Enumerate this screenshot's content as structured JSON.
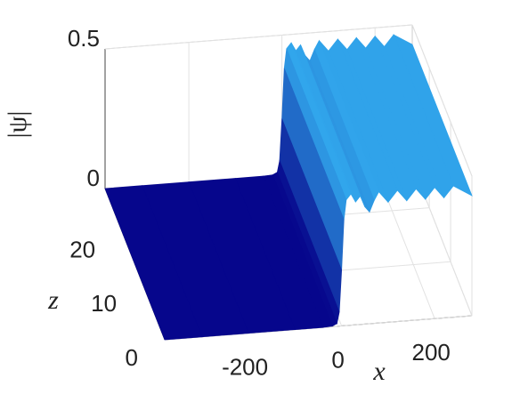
{
  "chart_data": {
    "type": "surface",
    "xlabel": "x",
    "ylabel": "z",
    "zlabel": "|ψ|",
    "x": [
      -380,
      -300,
      -200,
      -100,
      -40,
      -20,
      -10,
      -5,
      0,
      5,
      10,
      20,
      30,
      40,
      50,
      60,
      70,
      80,
      100,
      120,
      140,
      160,
      180,
      200,
      220,
      240,
      280
    ],
    "values": [
      0,
      0,
      0,
      0,
      0,
      0.002,
      0.01,
      0.05,
      0.2,
      0.38,
      0.45,
      0.47,
      0.44,
      0.46,
      0.42,
      0.4,
      0.44,
      0.47,
      0.43,
      0.47,
      0.43,
      0.47,
      0.43,
      0.47,
      0.43,
      0.47,
      0.43
    ],
    "xlim": [
      -380,
      280
    ],
    "xticks": [
      -200,
      0,
      200
    ],
    "ylim": [
      0,
      28
    ],
    "yticks": [
      0,
      10,
      20
    ],
    "zlim": [
      0,
      0.5
    ],
    "zticks": [
      0,
      0.5
    ],
    "colormap": [
      "#06068c",
      "#35b4f4"
    ],
    "grid": true
  }
}
